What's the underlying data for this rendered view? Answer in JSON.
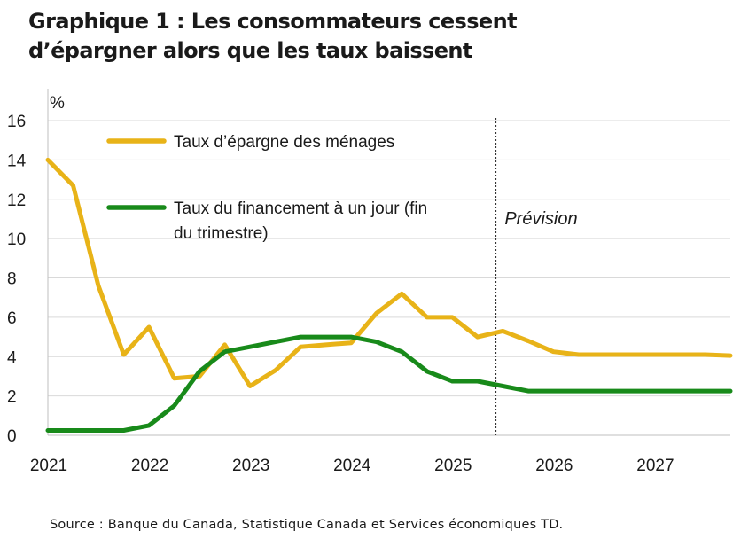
{
  "title_line1": "Graphique 1 : Les consommateurs cessent",
  "title_line2": "d’épargner alors que les taux baissent",
  "source": "Source : Banque du Canada, Statistique Canada et Services économiques TD.",
  "forecast_label": "Prévision",
  "colors": {
    "savings": "#e8b318",
    "rate": "#188a1a",
    "grid": "#d9d9d9",
    "text": "#1a1a1a"
  },
  "chart_data": {
    "type": "line",
    "ylabel": "%",
    "ylim": [
      0,
      16
    ],
    "yticks": [
      0,
      2,
      4,
      6,
      8,
      10,
      12,
      14,
      16
    ],
    "xlim": [
      2021.0,
      2027.75
    ],
    "xticks": [
      {
        "label": "2021",
        "value": 2021.0
      },
      {
        "label": "2022",
        "value": 2022.0
      },
      {
        "label": "2023",
        "value": 2023.0
      },
      {
        "label": "2024",
        "value": 2024.0
      },
      {
        "label": "2025",
        "value": 2025.0
      },
      {
        "label": "2026",
        "value": 2026.0
      },
      {
        "label": "2027",
        "value": 2027.0
      }
    ],
    "grid": "horizontal",
    "forecast_start": 2025.43,
    "x": [
      2021.0,
      2021.25,
      2021.5,
      2021.75,
      2022.0,
      2022.25,
      2022.5,
      2022.75,
      2023.0,
      2023.25,
      2023.5,
      2023.75,
      2024.0,
      2024.25,
      2024.5,
      2024.75,
      2025.0,
      2025.25,
      2025.5,
      2025.75,
      2026.0,
      2026.25,
      2026.5,
      2026.75,
      2027.0,
      2027.25,
      2027.5,
      2027.75
    ],
    "series": [
      {
        "name": "Taux d’épargne des ménages",
        "values": [
          14.0,
          12.7,
          7.6,
          4.1,
          5.5,
          2.9,
          3.0,
          4.6,
          2.5,
          3.3,
          4.5,
          4.6,
          4.7,
          6.2,
          7.2,
          6.0,
          6.0,
          5.0,
          5.3,
          4.8,
          4.25,
          4.1,
          4.1,
          4.1,
          4.1,
          4.1,
          4.1,
          4.05
        ]
      },
      {
        "name": "Taux du financement à un jour (fin du trimestre)",
        "values": [
          0.25,
          0.25,
          0.25,
          0.25,
          0.5,
          1.5,
          3.25,
          4.25,
          4.5,
          4.75,
          5.0,
          5.0,
          5.0,
          4.75,
          4.25,
          3.25,
          2.75,
          2.75,
          2.5,
          2.25,
          2.25,
          2.25,
          2.25,
          2.25,
          2.25,
          2.25,
          2.25,
          2.25
        ]
      }
    ],
    "legend": [
      {
        "line1": "Taux d’épargne des ménages",
        "line2": ""
      },
      {
        "line1": "Taux du financement à un jour (fin",
        "line2": "du trimestre)"
      }
    ]
  }
}
